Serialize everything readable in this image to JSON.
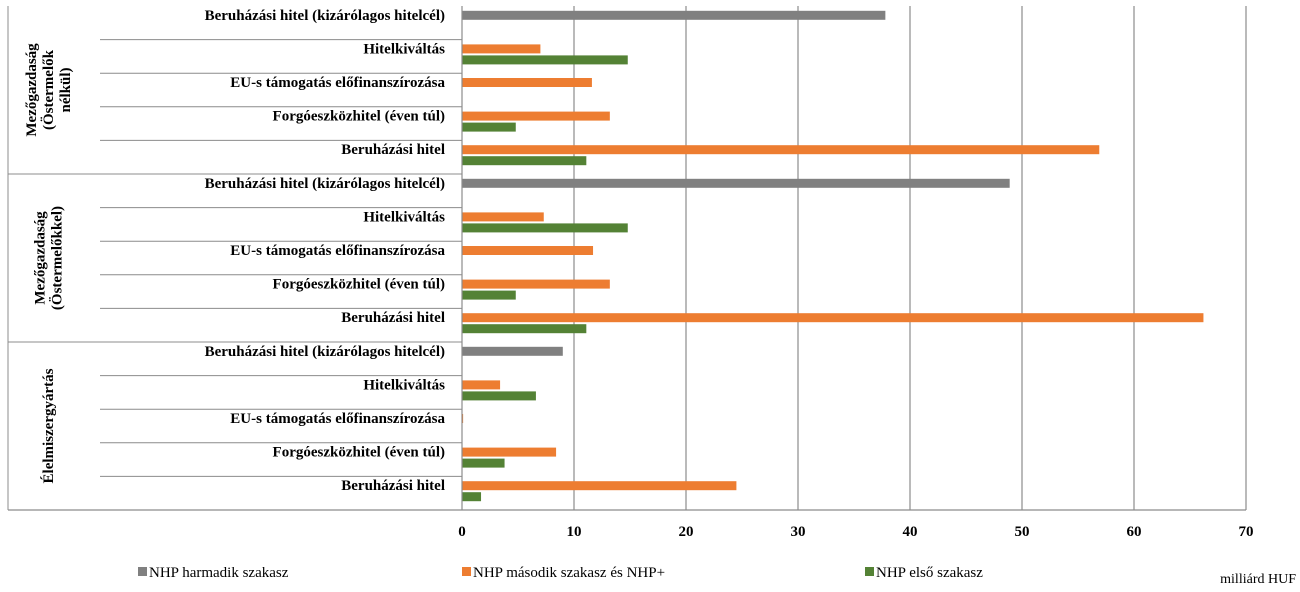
{
  "chart_data": {
    "type": "bar",
    "orientation": "horizontal",
    "groups": [
      {
        "label_lines": [
          "Mezőgazdaság",
          "(Östermelők",
          "nélkül)"
        ],
        "categories": [
          "Beruházási hitel (kizárólagos hitelcél)",
          "Hitelkiváltás",
          "EU-s támogatás előfinanszírozása",
          "Forgóeszközhitel (éven túl)",
          "Beruházási hitel"
        ]
      },
      {
        "label_lines": [
          "Mezőgazdaság",
          "(Östermelőkkel)"
        ],
        "categories": [
          "Beruházási hitel (kizárólagos hitelcél)",
          "Hitelkiváltás",
          "EU-s támogatás előfinanszírozása",
          "Forgóeszközhitel (éven túl)",
          "Beruházási hitel"
        ]
      },
      {
        "label_lines": [
          "Élelmiszergyártás"
        ],
        "categories": [
          "Beruházási hitel (kizárólagos hitelcél)",
          "Hitelkiváltás",
          "EU-s támogatás előfinanszírozása",
          "Forgóeszközhitel (éven túl)",
          "Beruházási hitel"
        ]
      }
    ],
    "series": [
      {
        "name": "NHP harmadik szakasz",
        "color": "#808080",
        "values": [
          [
            37.8,
            null,
            null,
            null,
            null
          ],
          [
            48.9,
            null,
            null,
            null,
            null
          ],
          [
            9.0,
            null,
            null,
            null,
            null
          ]
        ]
      },
      {
        "name": "NHP második szakasz és NHP+",
        "color": "#ed7d31",
        "values": [
          [
            null,
            7.0,
            11.6,
            13.2,
            56.9
          ],
          [
            null,
            7.3,
            11.7,
            13.2,
            66.2
          ],
          [
            null,
            3.4,
            0.1,
            8.4,
            24.5
          ]
        ]
      },
      {
        "name": "NHP első szakasz",
        "color": "#548235",
        "values": [
          [
            null,
            14.8,
            null,
            4.8,
            11.1
          ],
          [
            null,
            14.8,
            null,
            4.8,
            11.1
          ],
          [
            null,
            6.6,
            null,
            3.8,
            1.7
          ]
        ]
      }
    ],
    "x_ticks": [
      "0",
      "10",
      "20",
      "30",
      "40",
      "50",
      "60",
      "70"
    ],
    "xlim": [
      0,
      70
    ],
    "unit_label": "milliárd HUF",
    "grid": "vertical",
    "legend_position": "bottom"
  }
}
